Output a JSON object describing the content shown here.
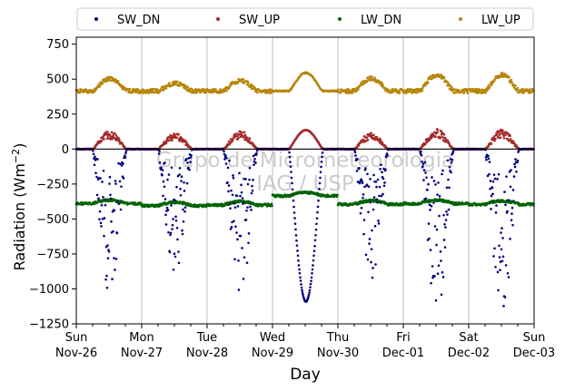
{
  "chart_data": {
    "type": "scatter",
    "title": "",
    "xlabel": "Day",
    "ylabel": "Radiation (Wm",
    "ylabel_exp": "−2",
    "ylabel_close": ")",
    "watermark": [
      "Grupo de Micrometeorologia",
      "IAG / USP"
    ],
    "ylim": [
      -1250,
      800
    ],
    "yticks": [
      750,
      500,
      250,
      0,
      -250,
      -500,
      -750,
      -1000,
      -1250
    ],
    "ytick_labels": [
      "750",
      "500",
      "250",
      "0",
      "−250",
      "−500",
      "−750",
      "−1000",
      "−1250"
    ],
    "xlim": [
      "2017-11-26",
      "2017-12-03"
    ],
    "xticks": [
      {
        "x": 0,
        "day": "Sun",
        "date": "Nov-26"
      },
      {
        "x": 1,
        "day": "Mon",
        "date": "Nov-27"
      },
      {
        "x": 2,
        "day": "Tue",
        "date": "Nov-28"
      },
      {
        "x": 3,
        "day": "Wed",
        "date": "Nov-29"
      },
      {
        "x": 4,
        "day": "Thu",
        "date": "Nov-30"
      },
      {
        "x": 5,
        "day": "Fri",
        "date": "Dec-01"
      },
      {
        "x": 6,
        "day": "Sat",
        "date": "Dec-02"
      },
      {
        "x": 7,
        "day": "Sun",
        "date": "Dec-03"
      }
    ],
    "grid": "vertical",
    "zero_line": true,
    "legend_position": "top",
    "series": [
      {
        "name": "SW_DN",
        "color": "#00007f",
        "kind": "sw_dn"
      },
      {
        "name": "SW_UP",
        "color": "#a52a2a",
        "kind": "sw_up"
      },
      {
        "name": "LW_DN",
        "color": "#006400",
        "kind": "lw_dn"
      },
      {
        "name": "LW_UP",
        "color": "#b8860b",
        "kind": "lw_up"
      }
    ],
    "daily": [
      {
        "sw_dn_peak": 1030,
        "sw_up_peak": 130,
        "lw_up_peak": 505,
        "lw_dn_mid": -390,
        "cloudy": true
      },
      {
        "sw_dn_peak": 920,
        "sw_up_peak": 115,
        "lw_up_peak": 470,
        "lw_dn_mid": -405,
        "cloudy": true
      },
      {
        "sw_dn_peak": 1040,
        "sw_up_peak": 130,
        "lw_up_peak": 490,
        "lw_dn_mid": -400,
        "cloudy": true
      },
      {
        "sw_dn_peak": 1090,
        "sw_up_peak": 135,
        "lw_up_peak": 545,
        "lw_dn_mid": -335,
        "cloudy": false
      },
      {
        "sw_dn_peak": 950,
        "sw_up_peak": 120,
        "lw_up_peak": 505,
        "lw_dn_mid": -395,
        "cloudy": true
      },
      {
        "sw_dn_peak": 1190,
        "sw_up_peak": 145,
        "lw_up_peak": 530,
        "lw_dn_mid": -390,
        "cloudy": true
      },
      {
        "sw_dn_peak": 1210,
        "sw_up_peak": 140,
        "lw_up_peak": 530,
        "lw_dn_mid": -395,
        "cloudy": true
      }
    ],
    "night_levels": {
      "sw_dn": 0,
      "sw_up": 0,
      "lw_up": 415,
      "lw_dn": -400
    }
  }
}
